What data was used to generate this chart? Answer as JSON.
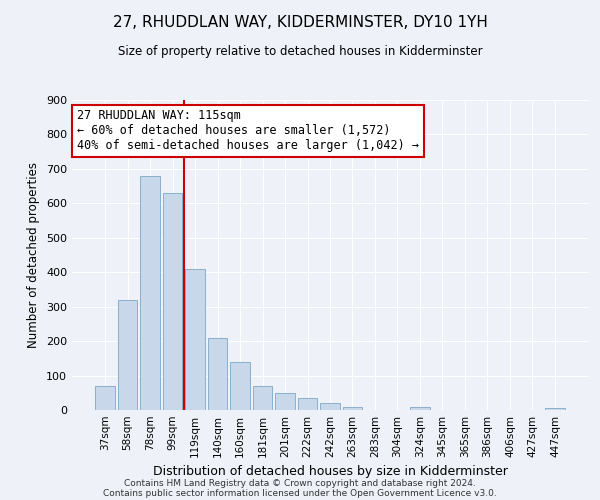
{
  "title": "27, RHUDDLAN WAY, KIDDERMINSTER, DY10 1YH",
  "subtitle": "Size of property relative to detached houses in Kidderminster",
  "xlabel": "Distribution of detached houses by size in Kidderminster",
  "ylabel": "Number of detached properties",
  "bar_color": "#c8d8ea",
  "bar_edge_color": "#8ab0cc",
  "background_color": "#eef2f8",
  "grid_color": "#ffffff",
  "annotation_box_color": "#cc0000",
  "vline_color": "#cc0000",
  "categories": [
    "37sqm",
    "58sqm",
    "78sqm",
    "99sqm",
    "119sqm",
    "140sqm",
    "160sqm",
    "181sqm",
    "201sqm",
    "222sqm",
    "242sqm",
    "263sqm",
    "283sqm",
    "304sqm",
    "324sqm",
    "345sqm",
    "365sqm",
    "386sqm",
    "406sqm",
    "427sqm",
    "447sqm"
  ],
  "values": [
    70,
    320,
    680,
    630,
    410,
    210,
    140,
    70,
    48,
    35,
    20,
    10,
    0,
    0,
    8,
    0,
    0,
    0,
    0,
    0,
    5
  ],
  "ylim": [
    0,
    900
  ],
  "yticks": [
    0,
    100,
    200,
    300,
    400,
    500,
    600,
    700,
    800,
    900
  ],
  "vline_x": 3.5,
  "annotation_text": "27 RHUDDLAN WAY: 115sqm\n← 60% of detached houses are smaller (1,572)\n40% of semi-detached houses are larger (1,042) →",
  "footer1": "Contains HM Land Registry data © Crown copyright and database right 2024.",
  "footer2": "Contains public sector information licensed under the Open Government Licence v3.0."
}
